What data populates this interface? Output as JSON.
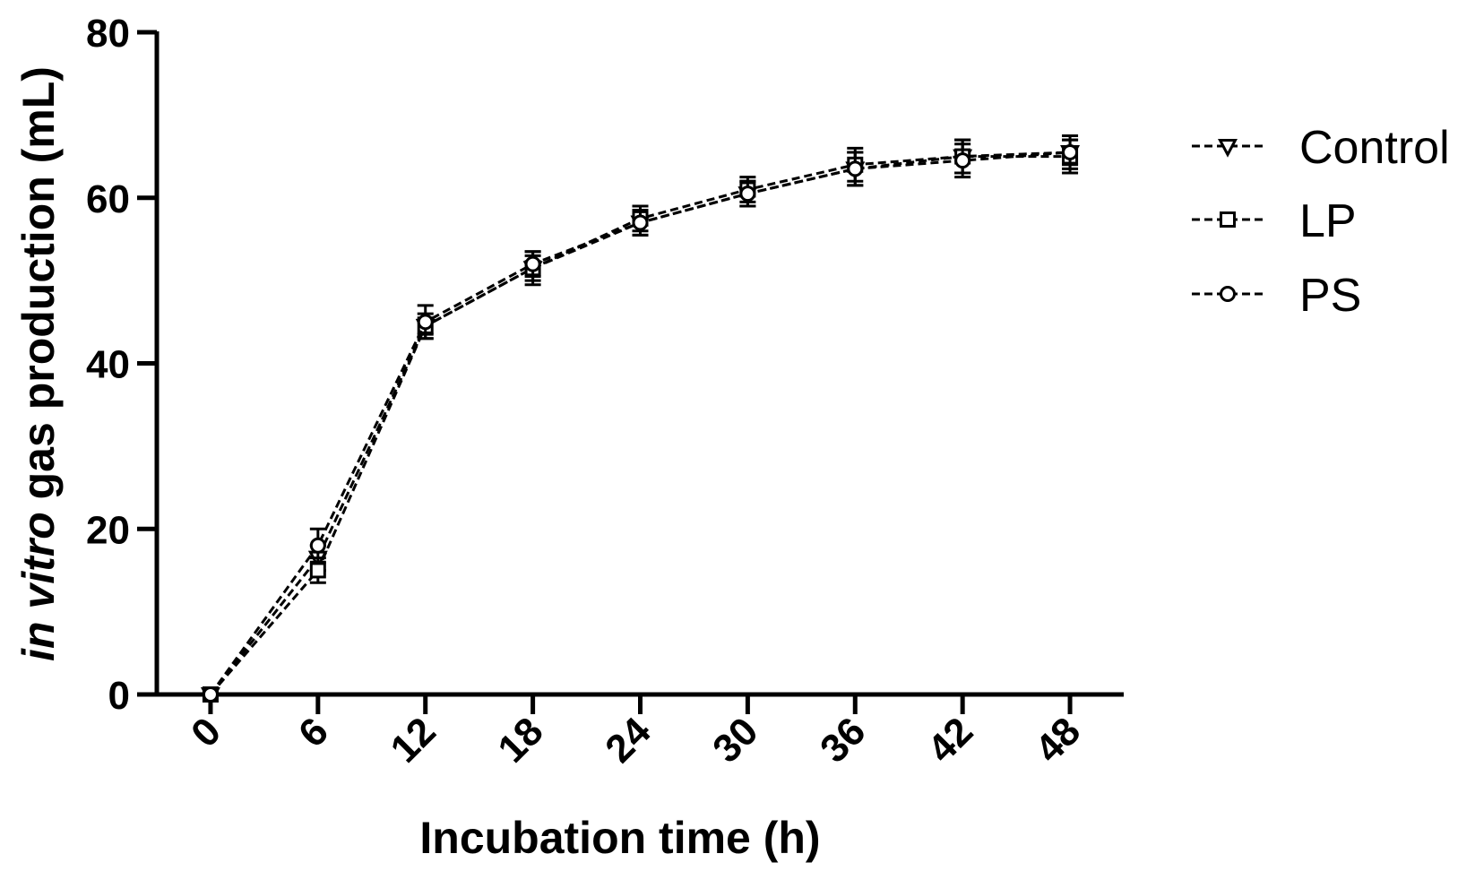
{
  "chart_data": {
    "type": "line",
    "title": "",
    "xlabel": "Incubation time (h)",
    "ylabel_italic": "in vitro",
    "ylabel_rest": " gas production (mL)",
    "x": [
      0,
      6,
      12,
      18,
      24,
      30,
      36,
      42,
      48
    ],
    "x_tick_labels": [
      "0",
      "6",
      "12",
      "18",
      "24",
      "30",
      "36",
      "42",
      "48"
    ],
    "y_ticks": [
      0,
      20,
      40,
      60,
      80
    ],
    "y_tick_labels": [
      "0",
      "20",
      "40",
      "60",
      "80"
    ],
    "xlim": [
      -3,
      51
    ],
    "ylim": [
      0,
      80
    ],
    "grid": false,
    "legend_position": "right",
    "series": [
      {
        "name": "Control",
        "marker": "triangle-down",
        "values": [
          0,
          16.5,
          44.5,
          51.5,
          57.0,
          60.5,
          63.5,
          65.0,
          65.5
        ],
        "errors": [
          0,
          1.5,
          1.0,
          1.5,
          1.5,
          1.5,
          2.0,
          2.0,
          1.5
        ]
      },
      {
        "name": "LP",
        "marker": "square",
        "values": [
          0,
          15.0,
          44.5,
          51.5,
          57.5,
          61.0,
          64.0,
          65.0,
          65.0
        ],
        "errors": [
          0,
          1.5,
          1.5,
          2.0,
          1.5,
          1.5,
          2.0,
          2.0,
          2.0
        ]
      },
      {
        "name": "PS",
        "marker": "circle",
        "values": [
          0,
          18.0,
          45.0,
          52.0,
          57.0,
          60.5,
          63.5,
          64.5,
          65.5
        ],
        "errors": [
          0,
          2.0,
          2.0,
          1.5,
          1.5,
          1.5,
          2.0,
          2.0,
          2.0
        ]
      }
    ]
  }
}
